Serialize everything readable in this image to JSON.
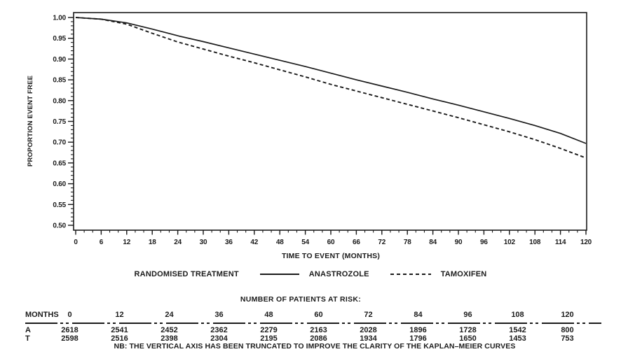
{
  "figure": {
    "background": "#ffffff",
    "ink_color": "#1b1b1b",
    "footnote": "NB: THE VERTICAL AXIS HAS BEEN TRUNCATED TO IMPROVE THE CLARITY OF THE KAPLAN–MEIER CURVES"
  },
  "legend": {
    "title": "RANDOMISED TREATMENT",
    "entries": [
      {
        "label": "ANASTROZOLE",
        "style": "solid"
      },
      {
        "label": "TAMOXIFEN",
        "style": "dashed"
      }
    ]
  },
  "chart_data": {
    "type": "line",
    "title": "",
    "xlabel": "TIME TO EVENT (MONTHS)",
    "ylabel": "PROPORTION EVENT FREE",
    "xlim": [
      0,
      120
    ],
    "ylim": [
      0.5,
      1.0
    ],
    "xticks": [
      0,
      6,
      12,
      18,
      24,
      30,
      36,
      42,
      48,
      54,
      60,
      66,
      72,
      78,
      84,
      90,
      96,
      102,
      108,
      114,
      120
    ],
    "yticks": [
      1.0,
      0.95,
      0.9,
      0.85,
      0.8,
      0.75,
      0.7,
      0.65,
      0.6,
      0.55,
      0.5
    ],
    "x_minor_step": 2,
    "y_minor_step": 0.01,
    "grid": false,
    "legend_position": "below",
    "x": [
      0,
      6,
      12,
      18,
      24,
      30,
      36,
      42,
      48,
      54,
      60,
      66,
      72,
      78,
      84,
      90,
      96,
      102,
      108,
      114,
      120
    ],
    "series": [
      {
        "name": "ANASTROZOLE",
        "style": "solid",
        "values": [
          1.0,
          0.996,
          0.987,
          0.972,
          0.956,
          0.942,
          0.927,
          0.912,
          0.897,
          0.882,
          0.866,
          0.85,
          0.835,
          0.82,
          0.804,
          0.789,
          0.773,
          0.757,
          0.74,
          0.721,
          0.697
        ]
      },
      {
        "name": "TAMOXIFEN",
        "style": "dashed",
        "values": [
          1.0,
          0.996,
          0.984,
          0.962,
          0.941,
          0.924,
          0.907,
          0.891,
          0.874,
          0.857,
          0.839,
          0.823,
          0.807,
          0.791,
          0.775,
          0.759,
          0.742,
          0.725,
          0.706,
          0.685,
          0.662
        ]
      }
    ]
  },
  "risk_table": {
    "heading": "NUMBER OF PATIENTS AT RISK:",
    "row_header": "MONTHS",
    "months": [
      0,
      12,
      24,
      36,
      48,
      60,
      72,
      84,
      96,
      108,
      120
    ],
    "rows": [
      {
        "label": "A",
        "values": [
          2618,
          2541,
          2452,
          2362,
          2279,
          2163,
          2028,
          1896,
          1728,
          1542,
          800
        ]
      },
      {
        "label": "T",
        "values": [
          2598,
          2516,
          2398,
          2304,
          2195,
          2086,
          1934,
          1796,
          1650,
          1453,
          753
        ]
      }
    ]
  }
}
